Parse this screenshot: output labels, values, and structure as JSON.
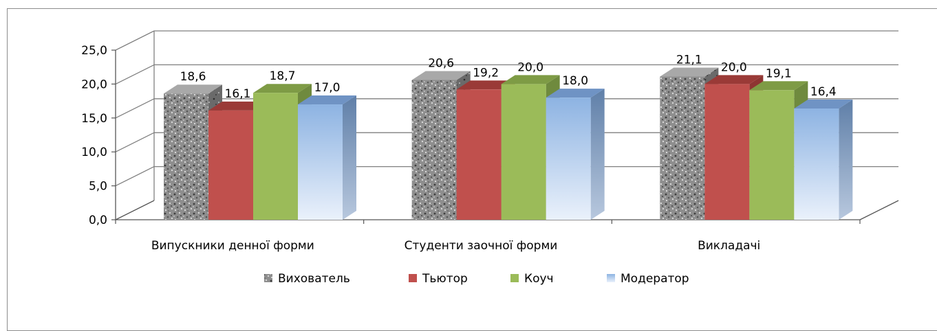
{
  "chart_data": {
    "type": "bar",
    "categories": [
      "Випускники денної форми",
      "Студенти заочної форми",
      "Викладачі"
    ],
    "series": [
      {
        "name": "Вихователь",
        "values": [
          18.6,
          20.6,
          21.1
        ],
        "color": "#8a8a8a",
        "value_labels": [
          "18,6",
          "20,6",
          "21,1"
        ]
      },
      {
        "name": "Тьютор",
        "values": [
          16.1,
          19.2,
          20.0
        ],
        "color": "#c0504d",
        "value_labels": [
          "16,1",
          "19,2",
          "20,0"
        ]
      },
      {
        "name": "Коуч",
        "values": [
          18.7,
          20.0,
          19.1
        ],
        "color": "#9bbb59",
        "value_labels": [
          "18,7",
          "20,0",
          "19,1"
        ]
      },
      {
        "name": "Модератор",
        "values": [
          17.0,
          18.0,
          16.4
        ],
        "color": "#8db3e2",
        "value_labels": [
          "17,0",
          "18,0",
          "16,4"
        ]
      }
    ],
    "y_ticks": [
      "0,0",
      "5,0",
      "10,0",
      "15,0",
      "20,0",
      "25,0"
    ],
    "ylim": [
      0,
      25
    ],
    "grid": true,
    "legend_position": "bottom",
    "style": "3d-clustered-column"
  }
}
